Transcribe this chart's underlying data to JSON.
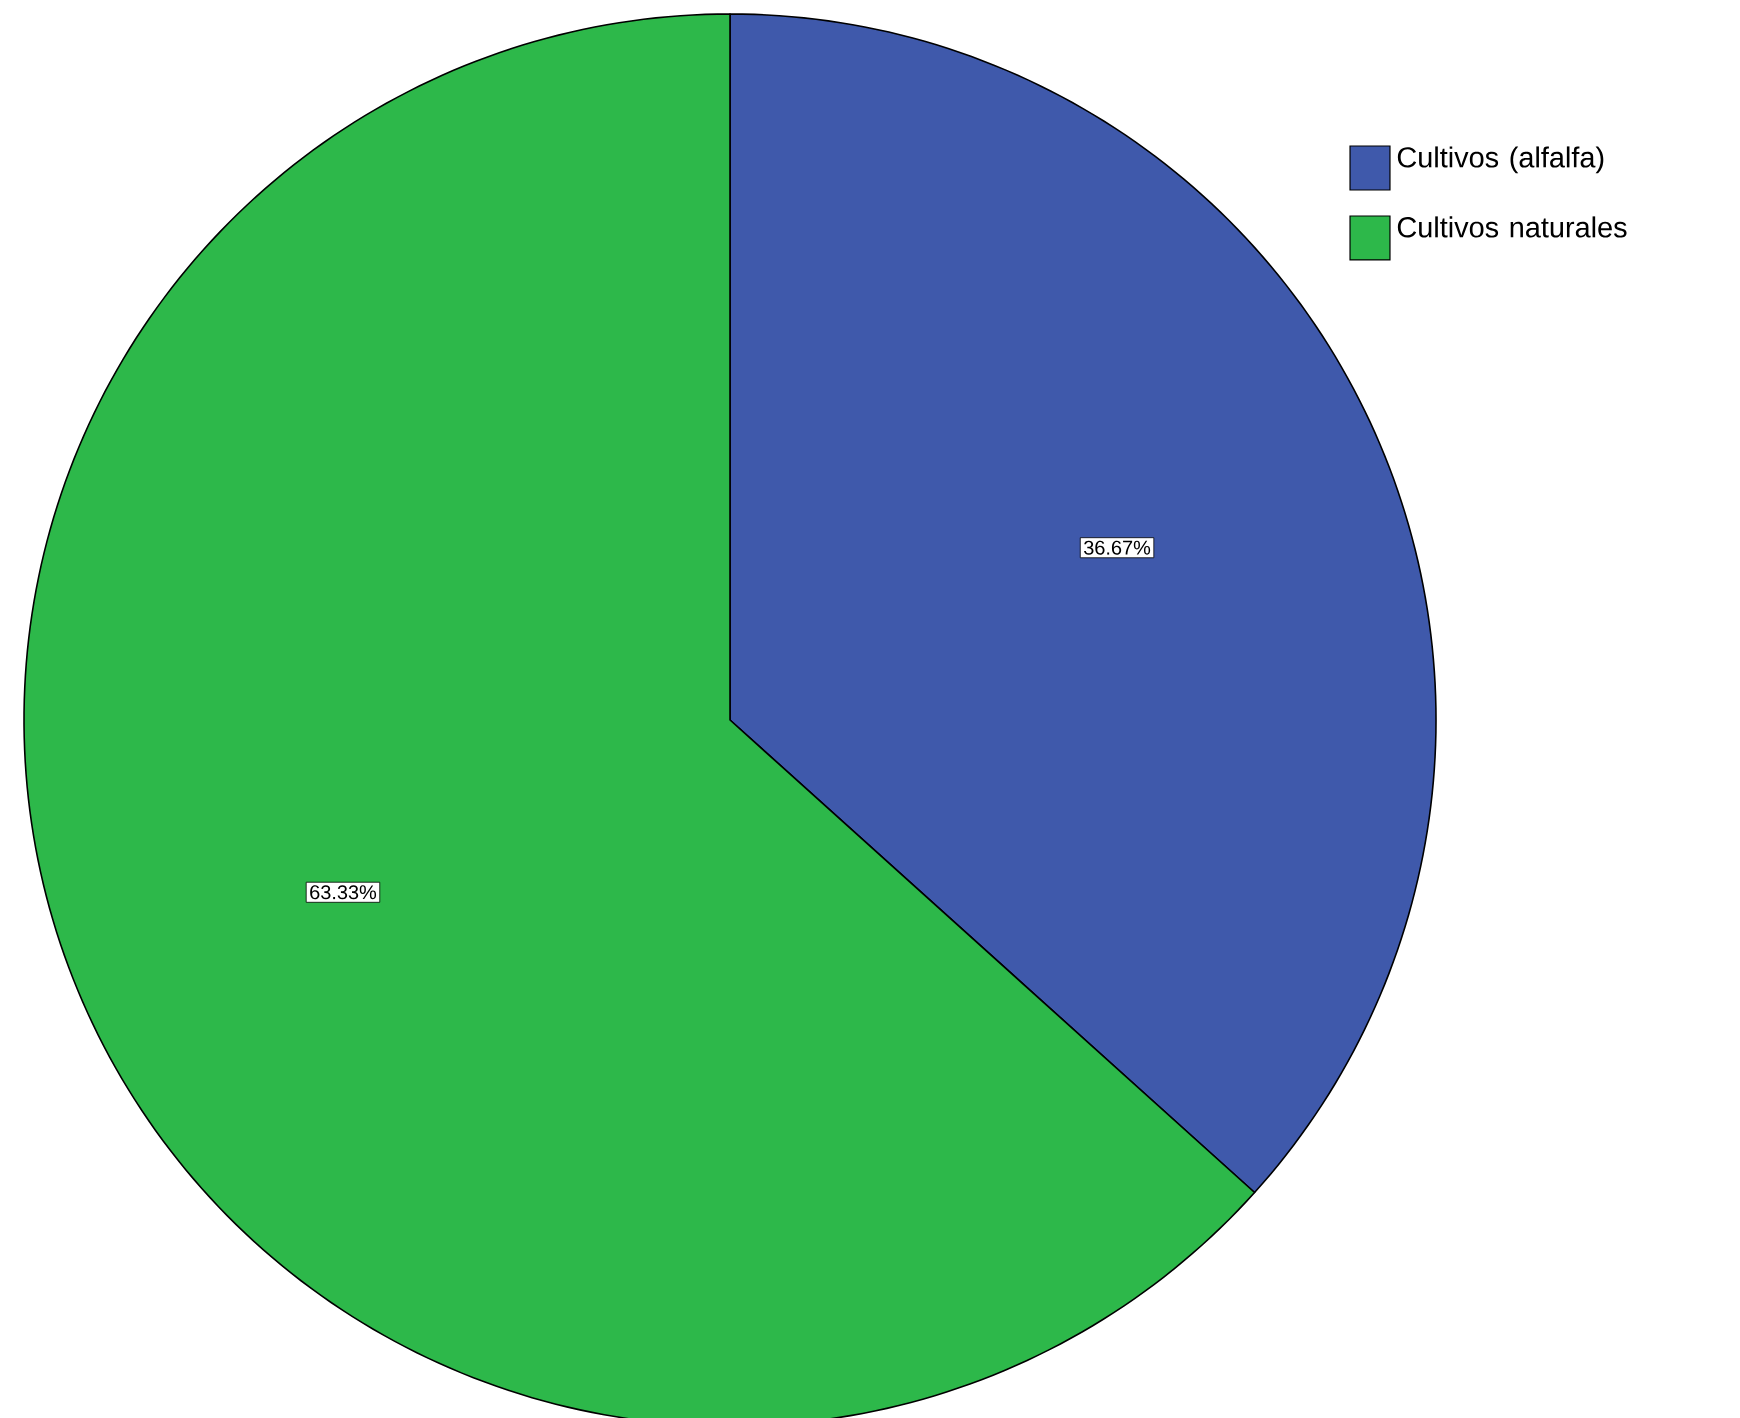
{
  "chart_data": {
    "type": "pie",
    "categories": [
      "Cultivos (alfalfa)",
      "Cultivos naturales"
    ],
    "values": [
      36.67,
      63.33
    ],
    "colors": [
      "#3f59ab",
      "#2db84a"
    ],
    "data_labels": true,
    "value_labels": [
      "36.67%",
      "63.33%"
    ],
    "legend": "top right"
  }
}
